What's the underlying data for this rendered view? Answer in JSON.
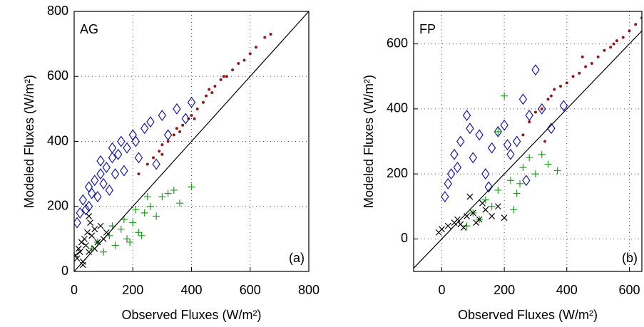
{
  "chart_data": [
    {
      "type": "scatter",
      "annotation": "AG",
      "label": "(a)",
      "x_label": "Observed Fluxes (W/m²)",
      "y_label": "Modeled Fluxes (W/m²)",
      "xlim": [
        0,
        800
      ],
      "ylim": [
        0,
        800
      ],
      "xticks": [
        0,
        200,
        400,
        600,
        800
      ],
      "yticks": [
        0,
        200,
        400,
        600,
        800
      ],
      "grid": true,
      "series": [
        {
          "color": "#8b1a1a",
          "marker": "dot",
          "x": [
            220,
            250,
            270,
            290,
            300,
            320,
            340,
            350,
            370,
            390,
            400,
            420,
            440,
            450,
            470,
            480,
            500,
            520,
            540,
            560,
            580,
            600,
            620,
            650,
            670,
            300,
            360,
            410,
            460,
            510
          ],
          "values": [
            300,
            330,
            350,
            370,
            390,
            400,
            420,
            440,
            450,
            470,
            480,
            500,
            520,
            540,
            550,
            570,
            590,
            600,
            620,
            640,
            650,
            670,
            690,
            720,
            730,
            360,
            430,
            470,
            560,
            600
          ]
        },
        {
          "color": "#1c1c8c",
          "marker": "diamond",
          "x": [
            10,
            20,
            30,
            40,
            50,
            60,
            70,
            80,
            90,
            100,
            110,
            120,
            130,
            140,
            150,
            160,
            180,
            200,
            220,
            240,
            260,
            280,
            300,
            320,
            350,
            380,
            400,
            50,
            90,
            130,
            170,
            210
          ],
          "values": [
            150,
            180,
            220,
            190,
            260,
            240,
            280,
            230,
            300,
            270,
            320,
            250,
            350,
            300,
            360,
            400,
            380,
            420,
            350,
            440,
            460,
            330,
            480,
            420,
            500,
            470,
            520,
            200,
            340,
            380,
            310,
            400
          ]
        },
        {
          "color": "#239b23",
          "marker": "plus",
          "x": [
            60,
            80,
            100,
            120,
            140,
            160,
            180,
            200,
            220,
            240,
            260,
            280,
            300,
            320,
            340,
            360,
            400,
            130,
            170,
            210,
            250,
            190,
            230
          ],
          "values": [
            70,
            90,
            60,
            110,
            80,
            130,
            100,
            150,
            120,
            180,
            200,
            170,
            230,
            240,
            250,
            210,
            260,
            140,
            160,
            190,
            230,
            90,
            110
          ]
        },
        {
          "color": "#000000",
          "marker": "x",
          "x": [
            5,
            10,
            15,
            20,
            25,
            30,
            35,
            40,
            45,
            50,
            55,
            60,
            70,
            80,
            90,
            100,
            110,
            30,
            50,
            70
          ],
          "values": [
            50,
            40,
            70,
            60,
            90,
            30,
            100,
            80,
            120,
            60,
            150,
            110,
            130,
            90,
            140,
            100,
            120,
            20,
            170,
            70
          ]
        }
      ]
    },
    {
      "type": "scatter",
      "annotation": "FP",
      "label": "(b)",
      "x_label": "Observed Fluxes (W/m²)",
      "y_label": "Modeled Fluxes (W/m²)",
      "xlim": [
        -90,
        640
      ],
      "ylim": [
        -100,
        700
      ],
      "xticks": [
        0,
        200,
        400,
        600
      ],
      "yticks": [
        0,
        200,
        400,
        600
      ],
      "grid": true,
      "series": [
        {
          "color": "#8b1a1a",
          "marker": "dot",
          "x": [
            260,
            280,
            300,
            320,
            340,
            360,
            380,
            400,
            420,
            440,
            460,
            480,
            500,
            520,
            540,
            560,
            580,
            600,
            620,
            640,
            350,
            450,
            550,
            330
          ],
          "values": [
            320,
            360,
            390,
            400,
            430,
            460,
            470,
            480,
            500,
            510,
            530,
            540,
            560,
            580,
            590,
            610,
            620,
            640,
            660,
            680,
            440,
            560,
            600,
            300
          ]
        },
        {
          "color": "#1c1c8c",
          "marker": "diamond",
          "x": [
            10,
            20,
            30,
            40,
            60,
            80,
            100,
            120,
            140,
            160,
            180,
            200,
            220,
            240,
            260,
            280,
            300,
            320,
            350,
            390,
            50,
            90,
            150,
            210,
            270
          ],
          "values": [
            130,
            170,
            200,
            260,
            300,
            380,
            250,
            320,
            200,
            280,
            330,
            350,
            260,
            300,
            430,
            380,
            520,
            400,
            340,
            410,
            220,
            340,
            160,
            290,
            180
          ]
        },
        {
          "color": "#239b23",
          "marker": "plus",
          "x": [
            80,
            100,
            120,
            140,
            160,
            180,
            200,
            220,
            240,
            260,
            280,
            300,
            320,
            340,
            370,
            180,
            230,
            250
          ],
          "values": [
            40,
            80,
            60,
            120,
            100,
            150,
            440,
            180,
            140,
            220,
            250,
            200,
            260,
            230,
            210,
            330,
            90,
            170
          ]
        },
        {
          "color": "#000000",
          "marker": "x",
          "x": [
            -10,
            0,
            20,
            40,
            50,
            60,
            80,
            100,
            120,
            140,
            160,
            180,
            200,
            90,
            110,
            130,
            70
          ],
          "values": [
            20,
            30,
            40,
            50,
            60,
            45,
            70,
            80,
            60,
            90,
            70,
            100,
            65,
            130,
            50,
            110,
            35
          ]
        }
      ]
    }
  ]
}
